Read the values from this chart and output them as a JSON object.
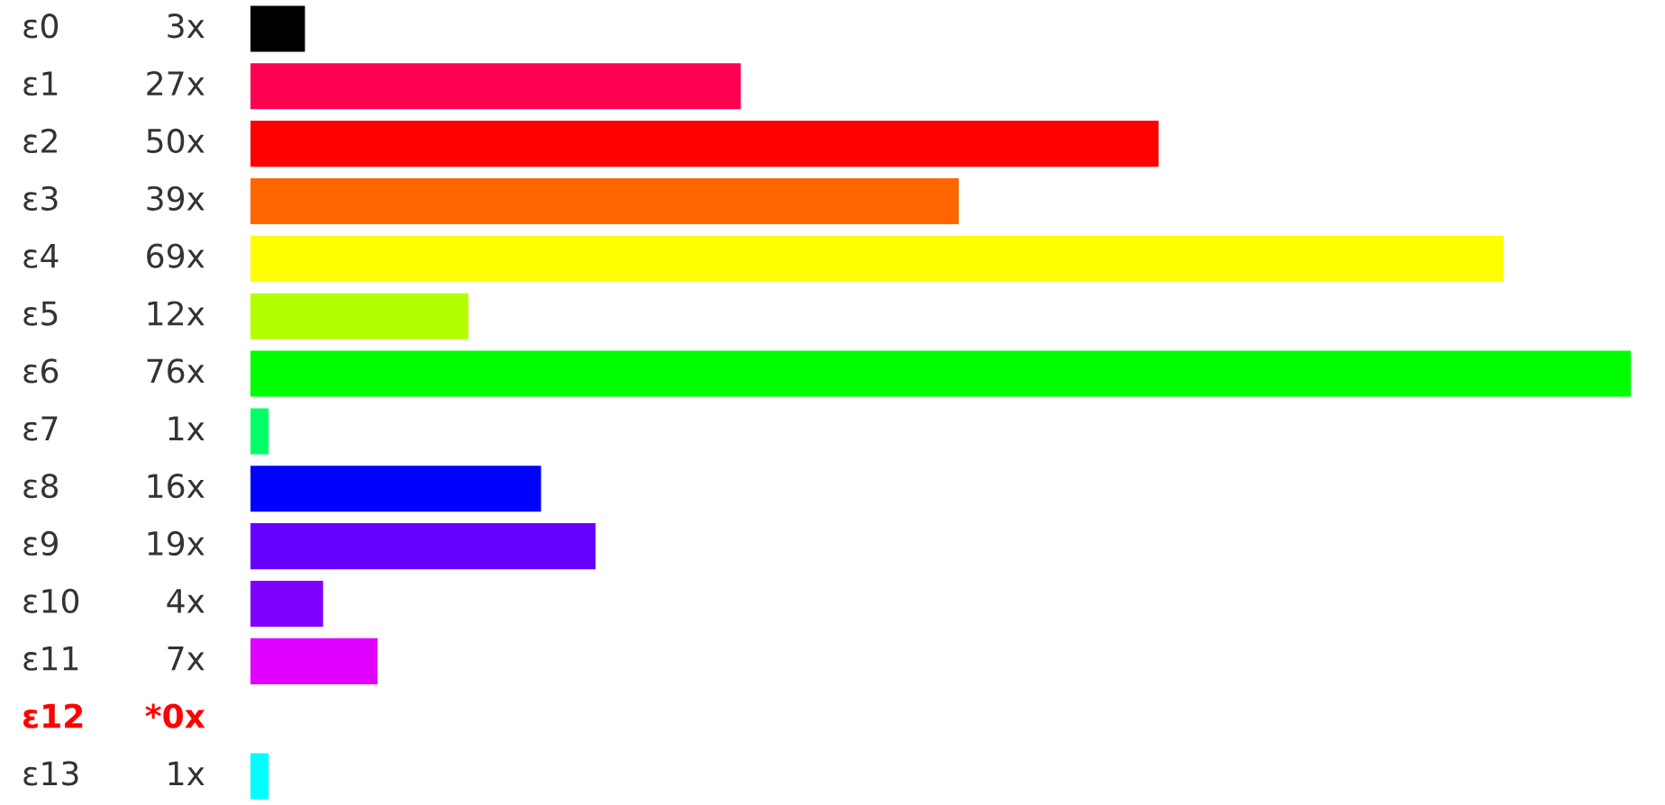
{
  "chart_data": {
    "type": "bar",
    "orientation": "horizontal",
    "categories": [
      "ε0",
      "ε1",
      "ε2",
      "ε3",
      "ε4",
      "ε5",
      "ε6",
      "ε7",
      "ε8",
      "ε9",
      "ε10",
      "ε11",
      "ε12",
      "ε13"
    ],
    "values": [
      3,
      27,
      50,
      39,
      69,
      12,
      76,
      1,
      16,
      19,
      4,
      7,
      0,
      1
    ],
    "value_labels": [
      "3x",
      "27x",
      "50x",
      "39x",
      "69x",
      "12x",
      "76x",
      "1x",
      "16x",
      "19x",
      "4x",
      "7x",
      "*0x",
      "1x"
    ],
    "colors": [
      "#000000",
      "#ff0050",
      "#ff0000",
      "#ff6600",
      "#ffff00",
      "#b3ff00",
      "#00ff00",
      "#00ff66",
      "#0000ff",
      "#6600ff",
      "#8000ff",
      "#e000ff",
      "#ff0000",
      "#00ffff"
    ],
    "grid": false
  }
}
